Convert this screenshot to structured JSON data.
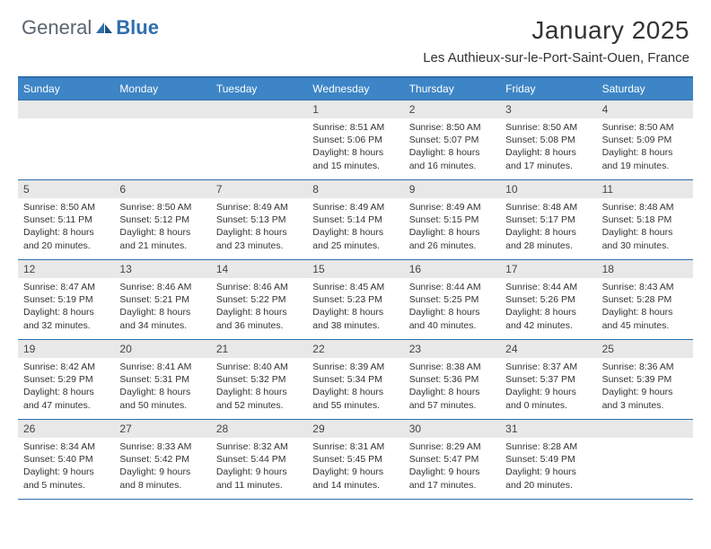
{
  "logo": {
    "textA": "General",
    "textB": "Blue"
  },
  "title": "January 2025",
  "location": "Les Authieux-sur-le-Port-Saint-Ouen, France",
  "colors": {
    "headerBar": "#3d85c6",
    "ruleLine": "#2f6fae",
    "dayNumBg": "#e8e8e8",
    "background": "#ffffff",
    "text": "#333333",
    "logoGray": "#5a6570",
    "logoBlue": "#2f6fae"
  },
  "weekdays": [
    "Sunday",
    "Monday",
    "Tuesday",
    "Wednesday",
    "Thursday",
    "Friday",
    "Saturday"
  ],
  "weeks": [
    [
      {
        "n": "",
        "sunrise": "",
        "sunset": "",
        "daylight": ""
      },
      {
        "n": "",
        "sunrise": "",
        "sunset": "",
        "daylight": ""
      },
      {
        "n": "",
        "sunrise": "",
        "sunset": "",
        "daylight": ""
      },
      {
        "n": "1",
        "sunrise": "Sunrise: 8:51 AM",
        "sunset": "Sunset: 5:06 PM",
        "daylight": "Daylight: 8 hours and 15 minutes."
      },
      {
        "n": "2",
        "sunrise": "Sunrise: 8:50 AM",
        "sunset": "Sunset: 5:07 PM",
        "daylight": "Daylight: 8 hours and 16 minutes."
      },
      {
        "n": "3",
        "sunrise": "Sunrise: 8:50 AM",
        "sunset": "Sunset: 5:08 PM",
        "daylight": "Daylight: 8 hours and 17 minutes."
      },
      {
        "n": "4",
        "sunrise": "Sunrise: 8:50 AM",
        "sunset": "Sunset: 5:09 PM",
        "daylight": "Daylight: 8 hours and 19 minutes."
      }
    ],
    [
      {
        "n": "5",
        "sunrise": "Sunrise: 8:50 AM",
        "sunset": "Sunset: 5:11 PM",
        "daylight": "Daylight: 8 hours and 20 minutes."
      },
      {
        "n": "6",
        "sunrise": "Sunrise: 8:50 AM",
        "sunset": "Sunset: 5:12 PM",
        "daylight": "Daylight: 8 hours and 21 minutes."
      },
      {
        "n": "7",
        "sunrise": "Sunrise: 8:49 AM",
        "sunset": "Sunset: 5:13 PM",
        "daylight": "Daylight: 8 hours and 23 minutes."
      },
      {
        "n": "8",
        "sunrise": "Sunrise: 8:49 AM",
        "sunset": "Sunset: 5:14 PM",
        "daylight": "Daylight: 8 hours and 25 minutes."
      },
      {
        "n": "9",
        "sunrise": "Sunrise: 8:49 AM",
        "sunset": "Sunset: 5:15 PM",
        "daylight": "Daylight: 8 hours and 26 minutes."
      },
      {
        "n": "10",
        "sunrise": "Sunrise: 8:48 AM",
        "sunset": "Sunset: 5:17 PM",
        "daylight": "Daylight: 8 hours and 28 minutes."
      },
      {
        "n": "11",
        "sunrise": "Sunrise: 8:48 AM",
        "sunset": "Sunset: 5:18 PM",
        "daylight": "Daylight: 8 hours and 30 minutes."
      }
    ],
    [
      {
        "n": "12",
        "sunrise": "Sunrise: 8:47 AM",
        "sunset": "Sunset: 5:19 PM",
        "daylight": "Daylight: 8 hours and 32 minutes."
      },
      {
        "n": "13",
        "sunrise": "Sunrise: 8:46 AM",
        "sunset": "Sunset: 5:21 PM",
        "daylight": "Daylight: 8 hours and 34 minutes."
      },
      {
        "n": "14",
        "sunrise": "Sunrise: 8:46 AM",
        "sunset": "Sunset: 5:22 PM",
        "daylight": "Daylight: 8 hours and 36 minutes."
      },
      {
        "n": "15",
        "sunrise": "Sunrise: 8:45 AM",
        "sunset": "Sunset: 5:23 PM",
        "daylight": "Daylight: 8 hours and 38 minutes."
      },
      {
        "n": "16",
        "sunrise": "Sunrise: 8:44 AM",
        "sunset": "Sunset: 5:25 PM",
        "daylight": "Daylight: 8 hours and 40 minutes."
      },
      {
        "n": "17",
        "sunrise": "Sunrise: 8:44 AM",
        "sunset": "Sunset: 5:26 PM",
        "daylight": "Daylight: 8 hours and 42 minutes."
      },
      {
        "n": "18",
        "sunrise": "Sunrise: 8:43 AM",
        "sunset": "Sunset: 5:28 PM",
        "daylight": "Daylight: 8 hours and 45 minutes."
      }
    ],
    [
      {
        "n": "19",
        "sunrise": "Sunrise: 8:42 AM",
        "sunset": "Sunset: 5:29 PM",
        "daylight": "Daylight: 8 hours and 47 minutes."
      },
      {
        "n": "20",
        "sunrise": "Sunrise: 8:41 AM",
        "sunset": "Sunset: 5:31 PM",
        "daylight": "Daylight: 8 hours and 50 minutes."
      },
      {
        "n": "21",
        "sunrise": "Sunrise: 8:40 AM",
        "sunset": "Sunset: 5:32 PM",
        "daylight": "Daylight: 8 hours and 52 minutes."
      },
      {
        "n": "22",
        "sunrise": "Sunrise: 8:39 AM",
        "sunset": "Sunset: 5:34 PM",
        "daylight": "Daylight: 8 hours and 55 minutes."
      },
      {
        "n": "23",
        "sunrise": "Sunrise: 8:38 AM",
        "sunset": "Sunset: 5:36 PM",
        "daylight": "Daylight: 8 hours and 57 minutes."
      },
      {
        "n": "24",
        "sunrise": "Sunrise: 8:37 AM",
        "sunset": "Sunset: 5:37 PM",
        "daylight": "Daylight: 9 hours and 0 minutes."
      },
      {
        "n": "25",
        "sunrise": "Sunrise: 8:36 AM",
        "sunset": "Sunset: 5:39 PM",
        "daylight": "Daylight: 9 hours and 3 minutes."
      }
    ],
    [
      {
        "n": "26",
        "sunrise": "Sunrise: 8:34 AM",
        "sunset": "Sunset: 5:40 PM",
        "daylight": "Daylight: 9 hours and 5 minutes."
      },
      {
        "n": "27",
        "sunrise": "Sunrise: 8:33 AM",
        "sunset": "Sunset: 5:42 PM",
        "daylight": "Daylight: 9 hours and 8 minutes."
      },
      {
        "n": "28",
        "sunrise": "Sunrise: 8:32 AM",
        "sunset": "Sunset: 5:44 PM",
        "daylight": "Daylight: 9 hours and 11 minutes."
      },
      {
        "n": "29",
        "sunrise": "Sunrise: 8:31 AM",
        "sunset": "Sunset: 5:45 PM",
        "daylight": "Daylight: 9 hours and 14 minutes."
      },
      {
        "n": "30",
        "sunrise": "Sunrise: 8:29 AM",
        "sunset": "Sunset: 5:47 PM",
        "daylight": "Daylight: 9 hours and 17 minutes."
      },
      {
        "n": "31",
        "sunrise": "Sunrise: 8:28 AM",
        "sunset": "Sunset: 5:49 PM",
        "daylight": "Daylight: 9 hours and 20 minutes."
      },
      {
        "n": "",
        "sunrise": "",
        "sunset": "",
        "daylight": ""
      }
    ]
  ]
}
